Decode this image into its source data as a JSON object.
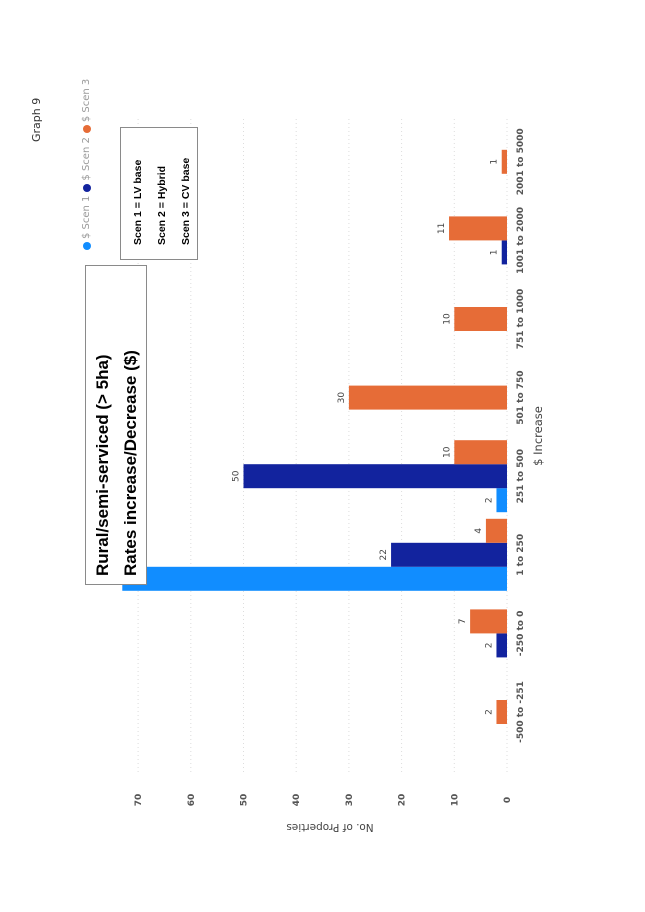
{
  "page_label": "Graph 9",
  "title_box": {
    "line1": "Rural/semi-serviced (> 5ha)",
    "line2": "Rates increase/Decrease ($)"
  },
  "scenario_box": {
    "lines": [
      "Scen 1 = LV base",
      "Scen 2 = Hybrid",
      "Scen 3 = CV base"
    ]
  },
  "colors": {
    "scen1": "#118DFF",
    "scen2": "#12239E",
    "scen3": "#E66C37",
    "grid": "#dddddd"
  },
  "chart_data": {
    "type": "bar",
    "orientation": "page rotated 90 degrees counter-clockwise",
    "xlabel": "$ Increase",
    "ylabel": "No. of Properties",
    "ylim": [
      0,
      75
    ],
    "yticks": [
      0,
      10,
      20,
      30,
      40,
      50,
      60,
      70
    ],
    "grid": true,
    "legend_position": "top-right",
    "categories": [
      "-500 to -251",
      "-250 to 0",
      "1 to 250",
      "251 to 500",
      "501 to 750",
      "751 to 1000",
      "1001 to 2000",
      "2001 to 5000"
    ],
    "series": [
      {
        "name": "$ Scen 1",
        "color_key": "scen1",
        "values": [
          null,
          null,
          73,
          2,
          null,
          null,
          null,
          null
        ]
      },
      {
        "name": "$ Scen 2",
        "color_key": "scen2",
        "values": [
          null,
          2,
          22,
          50,
          null,
          null,
          1,
          null
        ]
      },
      {
        "name": "$ Scen 3",
        "color_key": "scen3",
        "values": [
          2,
          7,
          4,
          10,
          30,
          10,
          11,
          1
        ]
      }
    ]
  }
}
